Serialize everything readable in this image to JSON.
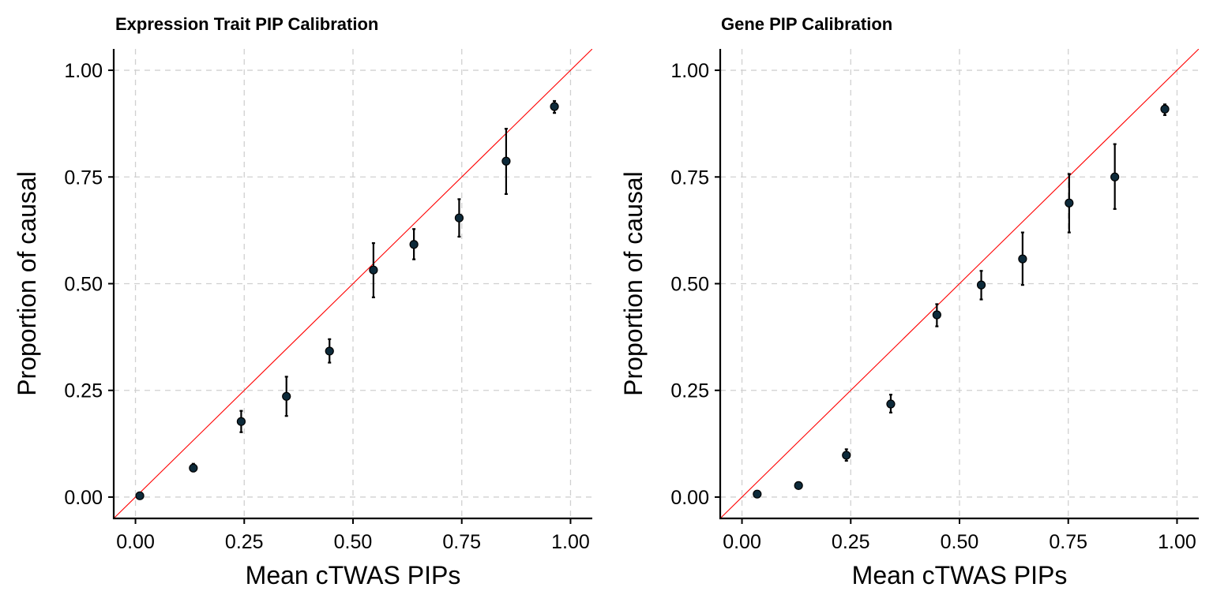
{
  "chart_data": [
    {
      "type": "scatter",
      "title": "Expression Trait PIP Calibration",
      "xlabel": "Mean cTWAS PIPs",
      "ylabel": "Proportion of causal",
      "xlim": [
        -0.05,
        1.05
      ],
      "ylim": [
        -0.05,
        1.05
      ],
      "xticks": [
        0.0,
        0.25,
        0.5,
        0.75,
        1.0
      ],
      "xtick_labels": [
        "0.00",
        "0.25",
        "0.50",
        "0.75",
        "1.00"
      ],
      "yticks": [
        0.0,
        0.25,
        0.5,
        0.75,
        1.0
      ],
      "ytick_labels": [
        "0.00",
        "0.25",
        "0.50",
        "0.75",
        "1.00"
      ],
      "grid": true,
      "reference_line": "y = x",
      "colors": {
        "reference_line": "#ff0000",
        "points": "#0d2a3a",
        "error_bars": "#000000"
      },
      "points": [
        {
          "x": 0.01,
          "y": 0.003,
          "lo": 0.0,
          "hi": 0.006
        },
        {
          "x": 0.133,
          "y": 0.068,
          "lo": 0.06,
          "hi": 0.078
        },
        {
          "x": 0.243,
          "y": 0.177,
          "lo": 0.152,
          "hi": 0.202
        },
        {
          "x": 0.347,
          "y": 0.236,
          "lo": 0.19,
          "hi": 0.282
        },
        {
          "x": 0.446,
          "y": 0.342,
          "lo": 0.315,
          "hi": 0.37
        },
        {
          "x": 0.547,
          "y": 0.532,
          "lo": 0.468,
          "hi": 0.595
        },
        {
          "x": 0.64,
          "y": 0.592,
          "lo": 0.557,
          "hi": 0.628
        },
        {
          "x": 0.744,
          "y": 0.654,
          "lo": 0.61,
          "hi": 0.698
        },
        {
          "x": 0.852,
          "y": 0.787,
          "lo": 0.71,
          "hi": 0.863
        },
        {
          "x": 0.963,
          "y": 0.915,
          "lo": 0.9,
          "hi": 0.928
        }
      ]
    },
    {
      "type": "scatter",
      "title": "Gene PIP Calibration",
      "xlabel": "Mean cTWAS PIPs",
      "ylabel": "Proportion of causal",
      "xlim": [
        -0.05,
        1.05
      ],
      "ylim": [
        -0.05,
        1.05
      ],
      "xticks": [
        0.0,
        0.25,
        0.5,
        0.75,
        1.0
      ],
      "xtick_labels": [
        "0.00",
        "0.25",
        "0.50",
        "0.75",
        "1.00"
      ],
      "yticks": [
        0.0,
        0.25,
        0.5,
        0.75,
        1.0
      ],
      "ytick_labels": [
        "0.00",
        "0.25",
        "0.50",
        "0.75",
        "1.00"
      ],
      "grid": true,
      "reference_line": "y = x",
      "colors": {
        "reference_line": "#ff0000",
        "points": "#0d2a3a",
        "error_bars": "#000000"
      },
      "points": [
        {
          "x": 0.035,
          "y": 0.007,
          "lo": 0.003,
          "hi": 0.011
        },
        {
          "x": 0.13,
          "y": 0.027,
          "lo": 0.022,
          "hi": 0.032
        },
        {
          "x": 0.24,
          "y": 0.098,
          "lo": 0.085,
          "hi": 0.112
        },
        {
          "x": 0.342,
          "y": 0.218,
          "lo": 0.198,
          "hi": 0.24
        },
        {
          "x": 0.448,
          "y": 0.427,
          "lo": 0.4,
          "hi": 0.452
        },
        {
          "x": 0.55,
          "y": 0.497,
          "lo": 0.463,
          "hi": 0.53
        },
        {
          "x": 0.645,
          "y": 0.558,
          "lo": 0.497,
          "hi": 0.62
        },
        {
          "x": 0.752,
          "y": 0.689,
          "lo": 0.62,
          "hi": 0.757
        },
        {
          "x": 0.857,
          "y": 0.75,
          "lo": 0.675,
          "hi": 0.827
        },
        {
          "x": 0.972,
          "y": 0.909,
          "lo": 0.895,
          "hi": 0.92
        }
      ]
    }
  ]
}
